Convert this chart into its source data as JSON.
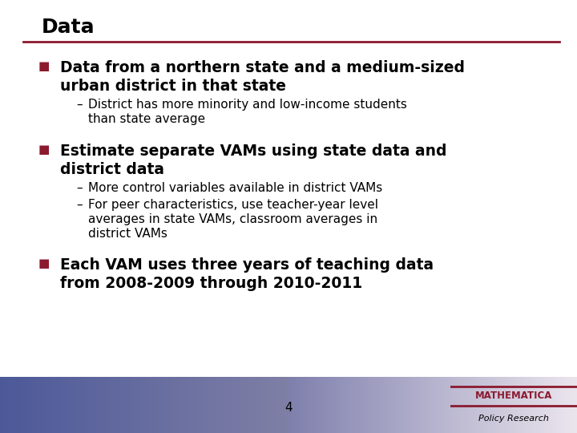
{
  "title": "Data",
  "title_color": "#000000",
  "title_fontsize": 18,
  "separator_color": "#8B1A2F",
  "background_color": "#FFFFFF",
  "bullet_color": "#8B1A2F",
  "text_color": "#000000",
  "bullet_fontsize": 13.5,
  "sub_fontsize": 11,
  "bullets": [
    {
      "text": "Data from a northern state and a medium-sized\nurban district in that state",
      "subs": [
        "District has more minority and low-income students\nthan state average"
      ]
    },
    {
      "text": "Estimate separate VAMs using state data and\ndistrict data",
      "subs": [
        "More control variables available in district VAMs",
        "For peer characteristics, use teacher-year level\naverages in state VAMs, classroom averages in\ndistrict VAMs"
      ]
    },
    {
      "text": "Each VAM uses three years of teaching data\nfrom 2008-2009 through 2010-2011",
      "subs": []
    }
  ],
  "footer_text": "4",
  "footer_color": "#000000",
  "logo_text_line1": "MATHEMATICA",
  "logo_text_line2": "Policy Research",
  "logo_color": "#8B1A2F"
}
